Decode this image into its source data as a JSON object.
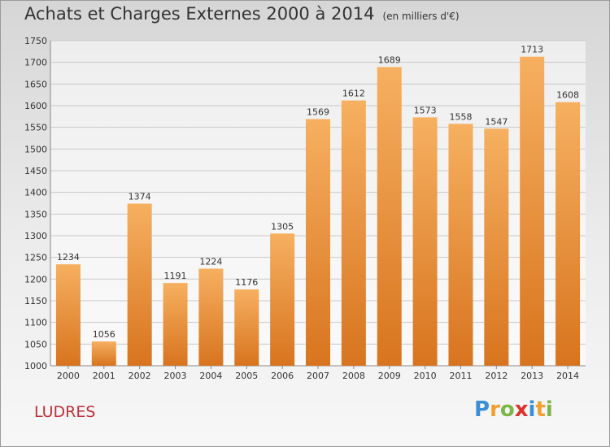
{
  "title": "Achats et Charges Externes 2000 à 2014",
  "unit": "(en milliers d'€)",
  "place": "LUDRES",
  "logo": {
    "letters": [
      "P",
      "r",
      "o",
      "x",
      "i",
      "t",
      "i"
    ],
    "colors": [
      "#3a8fd6",
      "#f0a030",
      "#7ab648",
      "#e0302a",
      "#3a8fd6",
      "#f0a030",
      "#7ab648"
    ]
  },
  "colors": {
    "bar": "#f08a2c",
    "bar_light": "#f6b060",
    "bar_dark": "#d8741f"
  },
  "chart_data": {
    "type": "bar",
    "title": "Achats et Charges Externes 2000 à 2014",
    "categories": [
      "2000",
      "2001",
      "2002",
      "2003",
      "2004",
      "2005",
      "2006",
      "2007",
      "2008",
      "2009",
      "2010",
      "2011",
      "2012",
      "2013",
      "2014"
    ],
    "values": [
      1234,
      1056,
      1374,
      1191,
      1224,
      1176,
      1305,
      1569,
      1612,
      1689,
      1573,
      1558,
      1547,
      1713,
      1608
    ],
    "ylim": [
      1000,
      1750
    ],
    "yticks": [
      1000,
      1050,
      1100,
      1150,
      1200,
      1250,
      1300,
      1350,
      1400,
      1450,
      1500,
      1550,
      1600,
      1650,
      1700,
      1750
    ],
    "grid": true,
    "xlabel": "",
    "ylabel": ""
  }
}
